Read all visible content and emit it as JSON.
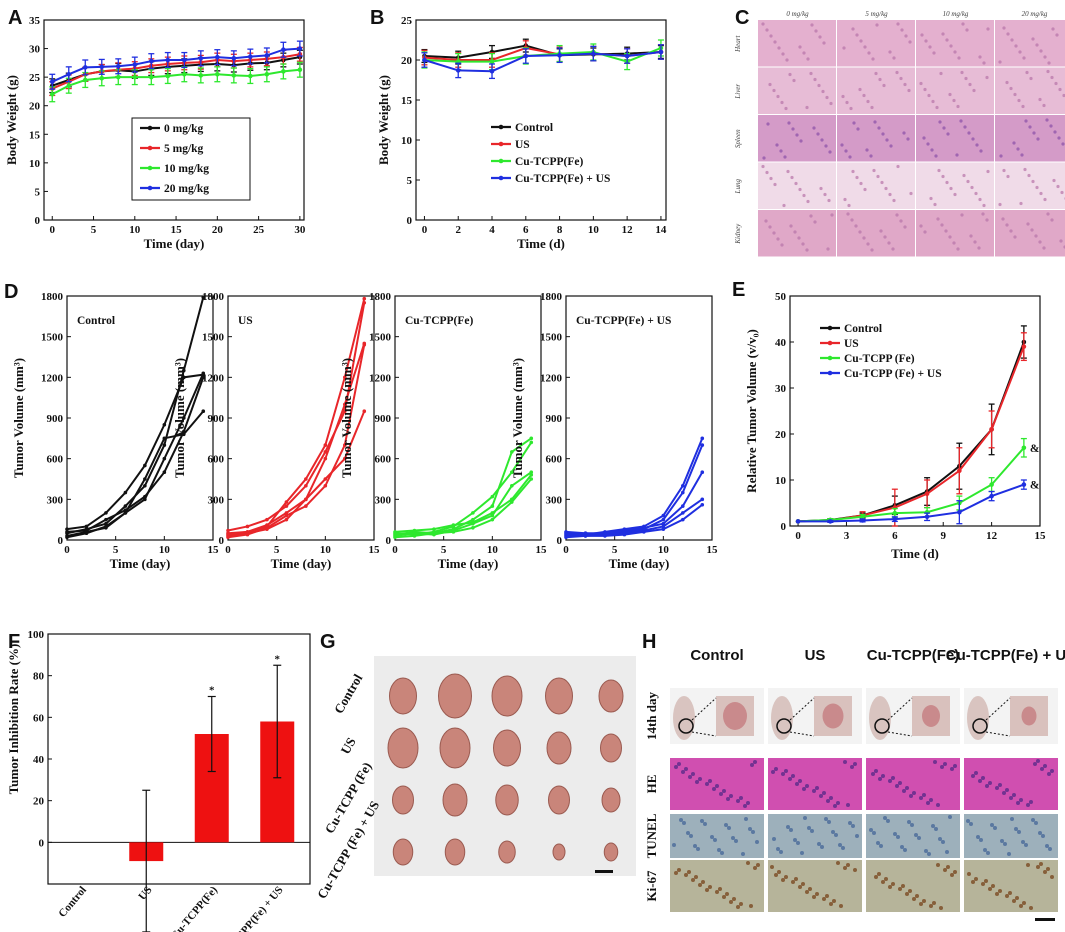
{
  "panels": {
    "A": "A",
    "B": "B",
    "C": "C",
    "D": "D",
    "E": "E",
    "F": "F",
    "G": "G",
    "H": "H"
  },
  "colors": {
    "black": "#111111",
    "red": "#e8262a",
    "green": "#2ee82e",
    "blue": "#1f2fe0"
  },
  "histology_c": {
    "doses": [
      "0 mg/kg",
      "5 mg/kg",
      "10 mg/kg",
      "20 mg/kg"
    ],
    "organs": [
      "Heart",
      "Liver",
      "Spleen",
      "Lung",
      "Kidney"
    ]
  },
  "tumor_photos_g": {
    "groups": [
      "Control",
      "US",
      "Cu-TCPP (Fe)",
      "Cu-TCPP (Fe) + US"
    ]
  },
  "panel_h": {
    "groups": [
      "Control",
      "US",
      "Cu-TCPP(Fe)",
      "Cu-TCPP(Fe) + US"
    ],
    "rows": [
      "14th day",
      "HE",
      "TUNEL",
      "Ki-67"
    ]
  },
  "chart_data": [
    {
      "id": "A",
      "type": "line",
      "xlabel": "Time (day)",
      "ylabel": "Body Weight (g)",
      "xlim": [
        -1,
        30.5
      ],
      "ylim": [
        0,
        35
      ],
      "xticks": [
        0,
        5,
        10,
        15,
        20,
        25,
        30
      ],
      "yticks": [
        0,
        5,
        10,
        15,
        20,
        25,
        30,
        35
      ],
      "x": [
        0,
        2,
        4,
        6,
        8,
        10,
        12,
        14,
        16,
        18,
        20,
        22,
        24,
        26,
        28,
        30
      ],
      "series": [
        {
          "name": "0 mg/kg",
          "color": "#111111",
          "values": [
            23.5,
            24.5,
            25.5,
            26,
            26.2,
            26,
            26.5,
            26.8,
            27,
            27.2,
            27.3,
            27.1,
            27.4,
            27.5,
            28,
            28.5
          ],
          "err": 1.2
        },
        {
          "name": "5 mg/kg",
          "color": "#e8262a",
          "values": [
            23,
            24.2,
            25.5,
            26,
            26.3,
            26.5,
            27,
            27.3,
            27.5,
            27.6,
            28,
            27.8,
            28,
            28.2,
            28.5,
            29
          ],
          "err": 1.2
        },
        {
          "name": "10 mg/kg",
          "color": "#2ee82e",
          "values": [
            22,
            23.5,
            24.5,
            24.8,
            25,
            25,
            25,
            25.2,
            25.5,
            25.3,
            25.5,
            25.3,
            25.2,
            25.5,
            26,
            26.3
          ],
          "err": 1.3
        },
        {
          "name": "20 mg/kg",
          "color": "#1f2fe0",
          "values": [
            24.2,
            25.5,
            26.7,
            26.8,
            26.9,
            27.2,
            27.8,
            28,
            28,
            28.3,
            28.5,
            28.3,
            28.6,
            28.8,
            29.8,
            30
          ],
          "err": 1.3
        }
      ]
    },
    {
      "id": "B",
      "type": "line",
      "xlabel": "Time (d)",
      "ylabel": "Body Weight (g)",
      "xlim": [
        -0.5,
        14.3
      ],
      "ylim": [
        0,
        25
      ],
      "xticks": [
        0,
        2,
        4,
        6,
        8,
        10,
        12,
        14
      ],
      "yticks": [
        0,
        5,
        10,
        15,
        20,
        25
      ],
      "x": [
        0,
        2,
        4,
        6,
        8,
        10,
        12,
        14
      ],
      "series": [
        {
          "name": "Control",
          "color": "#111111",
          "values": [
            20.5,
            20.3,
            21,
            21.8,
            20.6,
            20.7,
            20.8,
            21
          ],
          "err": 0.8
        },
        {
          "name": "US",
          "color": "#e8262a",
          "values": [
            20.3,
            20,
            20,
            21.5,
            20.7,
            20.8,
            20.5,
            21
          ],
          "err": 0.9
        },
        {
          "name": "Cu-TCPP(Fe)",
          "color": "#2ee82e",
          "values": [
            20,
            19.8,
            19.8,
            20.5,
            20.8,
            21,
            19.8,
            21.5
          ],
          "err": 1
        },
        {
          "name": "Cu-TCPP(Fe) + US",
          "color": "#1f2fe0",
          "values": [
            20,
            18.7,
            18.6,
            20.5,
            20.6,
            20.8,
            20.5,
            21
          ],
          "err": 0.9
        }
      ]
    },
    {
      "id": "D1",
      "type": "line",
      "title": "Control",
      "color": "#111111",
      "xlabel": "Time (day)",
      "ylabel": "Tumor Volume (mm³)",
      "xlim": [
        0,
        15
      ],
      "ylim": [
        0,
        1800
      ],
      "xticks": [
        0,
        5,
        10,
        15
      ],
      "yticks": [
        0,
        300,
        600,
        900,
        1200,
        1500,
        1800
      ],
      "x": [
        0,
        2,
        4,
        6,
        8,
        10,
        12,
        14
      ],
      "series": [
        {
          "values": [
            50,
            80,
            120,
            250,
            400,
            700,
            1250,
            1790
          ]
        },
        {
          "values": [
            80,
            100,
            200,
            350,
            550,
            850,
            1200,
            1220
          ]
        },
        {
          "values": [
            30,
            60,
            90,
            200,
            300,
            600,
            900,
            1230
          ]
        },
        {
          "values": [
            20,
            50,
            100,
            200,
            450,
            750,
            780,
            950
          ]
        },
        {
          "values": [
            60,
            70,
            150,
            220,
            320,
            500,
            800,
            1200
          ]
        }
      ]
    },
    {
      "id": "D2",
      "type": "line",
      "title": "US",
      "color": "#e8262a",
      "xlabel": "Time (day)",
      "ylabel": "Tumor Volume (mm³)",
      "xlim": [
        0,
        15
      ],
      "ylim": [
        0,
        1800
      ],
      "xticks": [
        0,
        5,
        10,
        15
      ],
      "yticks": [
        0,
        300,
        600,
        900,
        1200,
        1500,
        1800
      ],
      "x": [
        0,
        2,
        4,
        6,
        8,
        10,
        12,
        14
      ],
      "series": [
        {
          "values": [
            50,
            60,
            100,
            280,
            450,
            700,
            1200,
            1780
          ]
        },
        {
          "values": [
            30,
            50,
            80,
            150,
            300,
            600,
            1000,
            1450
          ]
        },
        {
          "values": [
            70,
            100,
            150,
            250,
            400,
            650,
            950,
            1750
          ]
        },
        {
          "values": [
            20,
            40,
            90,
            180,
            250,
            400,
            700,
            1440
          ]
        },
        {
          "values": [
            40,
            60,
            110,
            200,
            300,
            450,
            600,
            950
          ]
        }
      ]
    },
    {
      "id": "D3",
      "type": "line",
      "title": "Cu-TCPP(Fe)",
      "color": "#2ee82e",
      "xlabel": "Time (day)",
      "ylabel": "Tumor Volume (mm³)",
      "xlim": [
        0,
        15
      ],
      "ylim": [
        0,
        1800
      ],
      "xticks": [
        0,
        5,
        10,
        15
      ],
      "yticks": [
        0,
        300,
        600,
        900,
        1200,
        1500,
        1800
      ],
      "x": [
        0,
        2,
        4,
        6,
        8,
        10,
        12,
        14
      ],
      "series": [
        {
          "values": [
            40,
            60,
            50,
            80,
            150,
            250,
            650,
            750
          ]
        },
        {
          "values": [
            50,
            40,
            60,
            100,
            200,
            320,
            500,
            720
          ]
        },
        {
          "values": [
            30,
            50,
            40,
            70,
            120,
            180,
            400,
            500
          ]
        },
        {
          "values": [
            60,
            70,
            80,
            110,
            130,
            200,
            300,
            480
          ]
        },
        {
          "values": [
            20,
            30,
            50,
            60,
            90,
            150,
            280,
            450
          ]
        }
      ]
    },
    {
      "id": "D4",
      "type": "line",
      "title": "Cu-TCPP(Fe) + US",
      "color": "#1f2fe0",
      "xlabel": "Time (day)",
      "ylabel": "Tumor Volume (mm³)",
      "xlim": [
        0,
        15
      ],
      "ylim": [
        0,
        1800
      ],
      "xticks": [
        0,
        5,
        10,
        15
      ],
      "yticks": [
        0,
        300,
        600,
        900,
        1200,
        1500,
        1800
      ],
      "x": [
        0,
        2,
        4,
        6,
        8,
        10,
        12,
        14
      ],
      "series": [
        {
          "values": [
            50,
            40,
            60,
            80,
            100,
            180,
            400,
            750
          ]
        },
        {
          "values": [
            30,
            50,
            40,
            60,
            80,
            150,
            350,
            700
          ]
        },
        {
          "values": [
            60,
            50,
            50,
            70,
            90,
            120,
            250,
            500
          ]
        },
        {
          "values": [
            40,
            30,
            40,
            50,
            70,
            100,
            200,
            300
          ]
        },
        {
          "values": [
            20,
            30,
            30,
            40,
            60,
            80,
            150,
            260
          ]
        }
      ]
    },
    {
      "id": "E",
      "type": "line",
      "xlabel": "Time (d)",
      "ylabel": "Relative Tumor Volume (v/v₀)",
      "xlim": [
        -0.5,
        15
      ],
      "ylim": [
        0,
        50
      ],
      "xticks": [
        0,
        3,
        6,
        9,
        12,
        15
      ],
      "yticks": [
        0,
        10,
        20,
        30,
        40,
        50
      ],
      "x": [
        0,
        2,
        4,
        6,
        8,
        10,
        12,
        14
      ],
      "annotations": [
        "&",
        "&"
      ],
      "series": [
        {
          "name": "Control",
          "color": "#111111",
          "values": [
            1,
            1.3,
            2.3,
            4.5,
            7.5,
            13,
            21,
            40
          ],
          "err": [
            0,
            0.3,
            0.5,
            2,
            3,
            5,
            5.5,
            3.5
          ]
        },
        {
          "name": "US",
          "color": "#e8262a",
          "values": [
            1,
            1.2,
            2.3,
            4,
            7,
            12,
            21,
            39
          ],
          "err": [
            0,
            0.4,
            0.8,
            4,
            3,
            5,
            4,
            3
          ]
        },
        {
          "name": "Cu-TCPP (Fe)",
          "color": "#2ee82e",
          "values": [
            1,
            1.3,
            2,
            2.8,
            3,
            5,
            9,
            17
          ],
          "err": [
            0,
            0.3,
            0.5,
            1,
            1,
            1.5,
            1.5,
            2
          ]
        },
        {
          "name": "Cu-TCPP (Fe) + US",
          "color": "#1f2fe0",
          "values": [
            1,
            1,
            1.2,
            1.5,
            2,
            3,
            6.5,
            9
          ],
          "err": [
            0,
            0.2,
            0.3,
            0.5,
            0.8,
            2.5,
            1,
            1
          ]
        }
      ]
    },
    {
      "id": "F",
      "type": "bar",
      "ylabel": "Tumor Inhibition Rate (%)",
      "ylim": [
        -20,
        100
      ],
      "yticks": [
        0,
        20,
        40,
        60,
        80,
        100
      ],
      "categories": [
        "Control",
        "US",
        "Cu-TCPP(Fe)",
        "Cu-TCPP(Fe) + US"
      ],
      "values": [
        0,
        -9,
        52,
        58
      ],
      "err": [
        0,
        34,
        18,
        27
      ],
      "sig": [
        "",
        "",
        "*",
        "*"
      ],
      "color": "#ee1111"
    }
  ]
}
